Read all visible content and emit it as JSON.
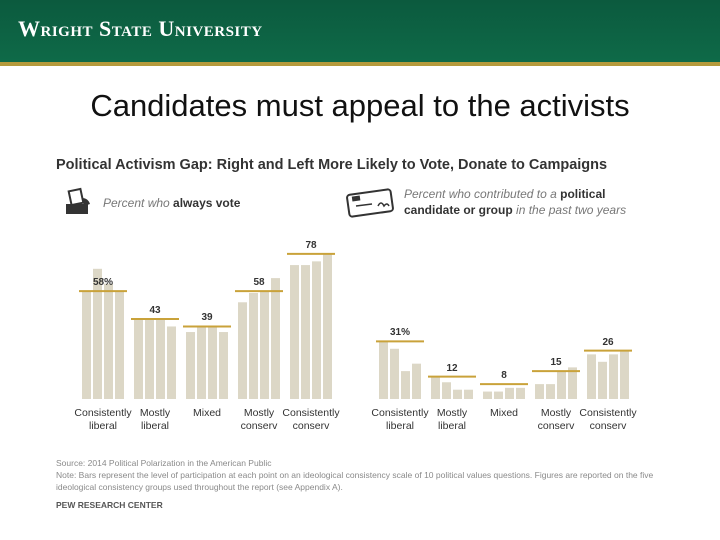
{
  "header": {
    "university": "Wright State University"
  },
  "slide": {
    "title": "Candidates must appeal to the activists"
  },
  "colors": {
    "banner": "#0c5a3e",
    "accent": "#b59a3c",
    "bars": "#dcd7c6",
    "median_line": "#c9a23a"
  },
  "chart_data": [
    {
      "type": "bar",
      "title": "Political Activism Gap: Right and Left More Likely to Vote, Donate to Campaigns",
      "legend": {
        "prefix": "Percent who",
        "bold": "always vote"
      },
      "icon": "ballot-icon",
      "categories": [
        "Consistently\nliberal",
        "Mostly\nliberal",
        "Mixed",
        "Mostly\nconserv",
        "Consistently\nconserv"
      ],
      "group_values": [
        "58%",
        "43",
        "39",
        "58",
        "78"
      ],
      "bar_values": [
        [
          58,
          70,
          62,
          58
        ],
        [
          43,
          43,
          43,
          39
        ],
        [
          36,
          39,
          39,
          36
        ],
        [
          52,
          57,
          58,
          65
        ],
        [
          72,
          72,
          74,
          78
        ]
      ],
      "ylim": [
        0,
        100
      ]
    },
    {
      "type": "bar",
      "legend": {
        "prefix": "Percent who contributed to a",
        "bold": "political candidate or group",
        "suffix": "in the past two years"
      },
      "icon": "check-icon",
      "categories": [
        "Consistently\nliberal",
        "Mostly\nliberal",
        "Mixed",
        "Mostly\nconserv",
        "Consistently\nconserv"
      ],
      "group_values": [
        "31%",
        "12",
        "8",
        "15",
        "26"
      ],
      "bar_values": [
        [
          31,
          27,
          15,
          19
        ],
        [
          12,
          9,
          5,
          5
        ],
        [
          4,
          4,
          6,
          6
        ],
        [
          8,
          8,
          15,
          17
        ],
        [
          24,
          20,
          24,
          26
        ]
      ],
      "ylim": [
        0,
        100
      ]
    }
  ],
  "footnotes": {
    "source": "Source: 2014 Political Polarization in the American Public",
    "note": "Note: Bars represent the level of participation at each point on an ideological consistency scale of 10 political values questions. Figures are reported on the five ideological consistency groups used throughout the report (see Appendix A).",
    "brand": "PEW RESEARCH CENTER"
  }
}
